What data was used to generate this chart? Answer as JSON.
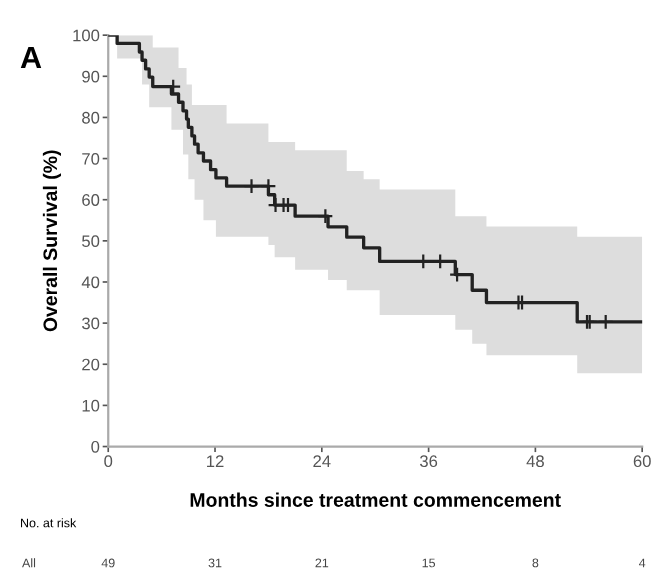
{
  "chart_data": {
    "type": "step",
    "xlabel": "Months since treatment commencement",
    "ylabel": "Overall Survival (%)",
    "xlim": [
      0,
      60
    ],
    "xticks": [
      0,
      12,
      24,
      36,
      48,
      60
    ],
    "ylim": [
      0,
      100
    ],
    "yticks": [
      0,
      10,
      20,
      30,
      40,
      50,
      60,
      70,
      80,
      90,
      100
    ],
    "grid": false,
    "legend": false,
    "annotations": [
      "A",
      "No. at risk",
      "All",
      "49",
      "31",
      "21",
      "15",
      "8",
      "4"
    ],
    "series": [
      {
        "color": "#222222",
        "line_style": "solid",
        "x": [
          0,
          1,
          3.5,
          3.8,
          4.2,
          4.6,
          5.0,
          7.1,
          7.9,
          8.4,
          8.8,
          9.0,
          9.4,
          9.7,
          10.1,
          10.7,
          11.5,
          12.1,
          13.3,
          18.0,
          18.7,
          21.0,
          24.7,
          26.8,
          28.7,
          30.5,
          39.0,
          40.9,
          42.5,
          52.7,
          60
        ],
        "values": [
          100,
          98,
          95.9,
          93.9,
          91.8,
          89.8,
          87.5,
          85.7,
          83.7,
          81.6,
          79.6,
          77.6,
          75.5,
          73.5,
          71.4,
          69.4,
          67.3,
          65.3,
          63.3,
          61.2,
          58.7,
          56.0,
          53.4,
          50.9,
          48.3,
          45.0,
          41.8,
          38.0,
          35.0,
          30.3,
          30.3
        ],
        "upper": [
          100,
          100,
          100,
          100,
          100,
          100,
          97,
          97,
          92,
          92,
          88,
          88,
          83,
          83,
          83,
          83,
          83,
          83,
          78.5,
          74,
          74,
          72,
          72,
          67,
          65,
          62.5,
          56,
          56,
          53.5,
          51,
          51
        ],
        "lower": [
          100,
          94.3,
          94.3,
          88,
          88,
          82.5,
          82.5,
          77,
          77,
          71,
          71,
          65,
          65,
          60,
          60,
          55,
          55,
          51,
          51,
          49,
          46,
          43,
          40.5,
          38,
          38,
          32,
          28.4,
          25,
          22.2,
          17.8,
          17.8
        ]
      },
      {
        "type": "scatter",
        "color": "#222222",
        "marker": "cross",
        "x": [
          7.3,
          16.1,
          18.0,
          18.8,
          19.7,
          20.2,
          24.4,
          35.4,
          37.3,
          39.2,
          46.1,
          46.5,
          53.8,
          54.1,
          55.9
        ],
        "values": [
          87.5,
          63.3,
          63.3,
          58.7,
          58.7,
          58.7,
          56.0,
          45.0,
          45.0,
          41.8,
          35.0,
          35.0,
          30.3,
          30.3,
          30.3
        ]
      }
    ]
  }
}
